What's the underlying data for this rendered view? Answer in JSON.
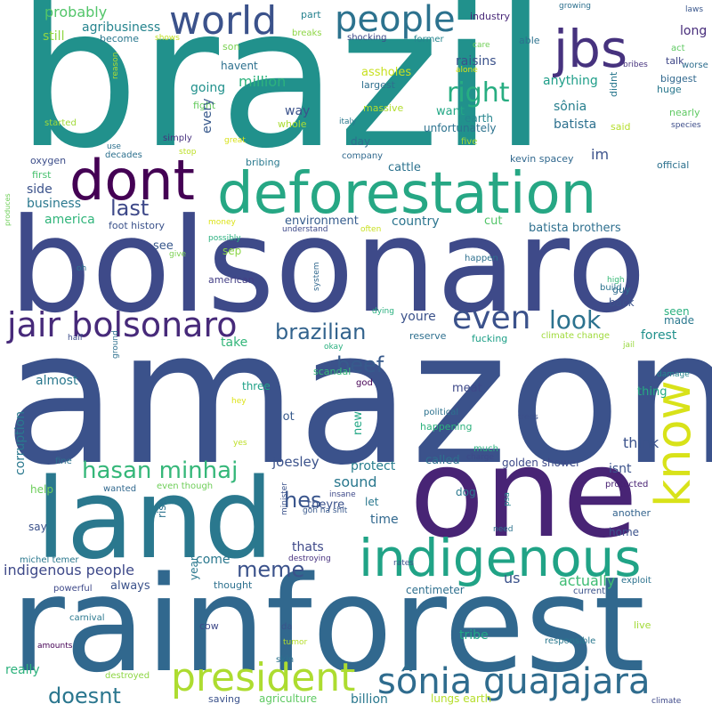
{
  "words": [
    {
      "text": "brazil",
      "color": "#21918c"
    },
    {
      "text": "amazon",
      "color": "#3b528b"
    },
    {
      "text": "bolsonaro",
      "color": "#3e4a89"
    },
    {
      "text": "rainforest",
      "color": "#31688e"
    },
    {
      "text": "one",
      "color": "#482475"
    },
    {
      "text": "land",
      "color": "#2a788e"
    },
    {
      "text": "deforestation",
      "color": "#26a784"
    },
    {
      "text": "indigenous",
      "color": "#20a386"
    },
    {
      "text": "dont",
      "color": "#440154"
    },
    {
      "text": "world",
      "color": "#3b528b"
    },
    {
      "text": "people",
      "color": "#2c728e"
    },
    {
      "text": "jbs",
      "color": "#46327e"
    },
    {
      "text": "president",
      "color": "#addc30"
    },
    {
      "text": "sônia guajajara",
      "color": "#2f6c8e"
    },
    {
      "text": "know",
      "color": "#d8e219"
    },
    {
      "text": "jair bolsonaro",
      "color": "#472a7a"
    },
    {
      "text": "even",
      "color": "#3b528b"
    },
    {
      "text": "right",
      "color": "#27ad81"
    },
    {
      "text": "look",
      "color": "#2c728e"
    },
    {
      "text": "hasan minhaj",
      "color": "#35b779"
    },
    {
      "text": "brazilian",
      "color": "#33638d"
    },
    {
      "text": "beef",
      "color": "#375a8c"
    },
    {
      "text": "doesnt",
      "color": "#2a768e"
    },
    {
      "text": "meme",
      "color": "#3b528b"
    },
    {
      "text": "last",
      "color": "#3e4989"
    },
    {
      "text": "hes",
      "color": "#39558c"
    },
    {
      "text": "probably",
      "color": "#52c569"
    },
    {
      "text": "agribusiness",
      "color": "#25848e"
    },
    {
      "text": "still",
      "color": "#90d743"
    },
    {
      "text": "become",
      "color": "#2a788e"
    },
    {
      "text": "shows",
      "color": "#c2df23"
    },
    {
      "text": "part",
      "color": "#26828e"
    },
    {
      "text": "breaks",
      "color": "#8ed645"
    },
    {
      "text": "son",
      "color": "#7ad151"
    },
    {
      "text": "havent",
      "color": "#2d708e"
    },
    {
      "text": "million",
      "color": "#2db27d"
    },
    {
      "text": "industry",
      "color": "#482878"
    },
    {
      "text": "shocking",
      "color": "#3e4989"
    },
    {
      "text": "former",
      "color": "#25858e"
    },
    {
      "text": "care",
      "color": "#70cf57"
    },
    {
      "text": "able",
      "color": "#2c728e"
    },
    {
      "text": "alone",
      "color": "#dde318"
    },
    {
      "text": "raisins",
      "color": "#3b528b"
    },
    {
      "text": "assholes",
      "color": "#c8e020"
    },
    {
      "text": "largest",
      "color": "#2e6f8e"
    },
    {
      "text": "anything",
      "color": "#1f9e89"
    },
    {
      "text": "didnt",
      "color": "#2a788e"
    },
    {
      "text": "growing",
      "color": "#2d708e"
    },
    {
      "text": "laws",
      "color": "#39568c"
    },
    {
      "text": "long",
      "color": "#472d7b"
    },
    {
      "text": "act",
      "color": "#5ec962"
    },
    {
      "text": "worse",
      "color": "#2e6e8e"
    },
    {
      "text": "bribes",
      "color": "#46327e"
    },
    {
      "text": "talk",
      "color": "#3f4788"
    },
    {
      "text": "biggest",
      "color": "#31688e"
    },
    {
      "text": "huge",
      "color": "#2a788e"
    },
    {
      "text": "nearly",
      "color": "#5ec962"
    },
    {
      "text": "species",
      "color": "#3d4d8a"
    },
    {
      "text": "going",
      "color": "#21918c"
    },
    {
      "text": "massive",
      "color": "#b2dd2d"
    },
    {
      "text": "whole",
      "color": "#aadc32"
    },
    {
      "text": "way",
      "color": "#3b528b"
    },
    {
      "text": "want",
      "color": "#22a785"
    },
    {
      "text": "earth",
      "color": "#25858e"
    },
    {
      "text": "unfortunately",
      "color": "#2c728e"
    },
    {
      "text": "sônia",
      "color": "#277f8e"
    },
    {
      "text": "batista",
      "color": "#2d708e"
    },
    {
      "text": "said",
      "color": "#b5de2b"
    },
    {
      "text": "reason",
      "color": "#addc30"
    },
    {
      "text": "fight",
      "color": "#65cb5e"
    },
    {
      "text": "great",
      "color": "#d8e219"
    },
    {
      "text": "italy",
      "color": "#2a788e"
    },
    {
      "text": "five",
      "color": "#a2da37"
    },
    {
      "text": "started",
      "color": "#a0da39"
    },
    {
      "text": "use",
      "color": "#2d708e"
    },
    {
      "text": "decades",
      "color": "#2d708e"
    },
    {
      "text": "simply",
      "color": "#46307e"
    },
    {
      "text": "stop",
      "color": "#bddf26"
    },
    {
      "text": "every",
      "color": "#38598c"
    },
    {
      "text": "day",
      "color": "#2e6e8e"
    },
    {
      "text": "company",
      "color": "#30698e"
    },
    {
      "text": "im",
      "color": "#3b528b"
    },
    {
      "text": "kevin spacey",
      "color": "#31688e"
    },
    {
      "text": "official",
      "color": "#2c718e"
    },
    {
      "text": "oxygen",
      "color": "#3d4e8a"
    },
    {
      "text": "bribing",
      "color": "#29798e"
    },
    {
      "text": "cattle",
      "color": "#2c728e"
    },
    {
      "text": "first",
      "color": "#48c16e"
    },
    {
      "text": "side",
      "color": "#3b528b"
    },
    {
      "text": "business",
      "color": "#2a788e"
    },
    {
      "text": "america",
      "color": "#31b57b"
    },
    {
      "text": "environment",
      "color": "#365c8d"
    },
    {
      "text": "country",
      "color": "#2b748e"
    },
    {
      "text": "cut",
      "color": "#52c569"
    },
    {
      "text": "batista brothers",
      "color": "#2e6f8e"
    },
    {
      "text": "foot history",
      "color": "#3b528b"
    },
    {
      "text": "money",
      "color": "#dde318"
    },
    {
      "text": "understand",
      "color": "#3e4989"
    },
    {
      "text": "often",
      "color": "#c8e020"
    },
    {
      "text": "possibly",
      "color": "#2ab07f"
    },
    {
      "text": "produces",
      "color": "#6ece58"
    },
    {
      "text": "give",
      "color": "#7ad151"
    },
    {
      "text": "sep",
      "color": "#8bd646"
    },
    {
      "text": "see",
      "color": "#38588c"
    },
    {
      "text": "happen",
      "color": "#2d708e"
    },
    {
      "text": "guy",
      "color": "#2f6b8e"
    },
    {
      "text": "oh",
      "color": "#2c728e"
    },
    {
      "text": "american",
      "color": "#433e85"
    },
    {
      "text": "system",
      "color": "#31688e"
    },
    {
      "text": "high",
      "color": "#38b977"
    },
    {
      "text": "build",
      "color": "#2c728e"
    },
    {
      "text": "back",
      "color": "#3b528b"
    },
    {
      "text": "seen",
      "color": "#2ab07f"
    },
    {
      "text": "made",
      "color": "#2a788e"
    },
    {
      "text": "forest",
      "color": "#21918c"
    },
    {
      "text": "youre",
      "color": "#3b528b"
    },
    {
      "text": "take",
      "color": "#33b67a"
    },
    {
      "text": "dying",
      "color": "#2ab07f"
    },
    {
      "text": "reserve",
      "color": "#2e6f8e"
    },
    {
      "text": "fucking",
      "color": "#1fa088"
    },
    {
      "text": "climate change",
      "color": "#9fda3a"
    },
    {
      "text": "half",
      "color": "#3d4d8a"
    },
    {
      "text": "okay",
      "color": "#2ab07f"
    },
    {
      "text": "jail",
      "color": "#98d83e"
    },
    {
      "text": "ground",
      "color": "#2d708e"
    },
    {
      "text": "scandal",
      "color": "#37b878"
    },
    {
      "text": "almost",
      "color": "#2a788e"
    },
    {
      "text": "meat",
      "color": "#3e4989"
    },
    {
      "text": "damage",
      "color": "#25858e"
    },
    {
      "text": "three",
      "color": "#1fa187"
    },
    {
      "text": "thing",
      "color": "#25ac82"
    },
    {
      "text": "god",
      "color": "#440154"
    },
    {
      "text": "hey",
      "color": "#dde318"
    },
    {
      "text": "lot",
      "color": "#375a8c"
    },
    {
      "text": "political",
      "color": "#2c728e"
    },
    {
      "text": "trees",
      "color": "#3c4f8a"
    },
    {
      "text": "happening",
      "color": "#2db27d"
    },
    {
      "text": "new",
      "color": "#22a785"
    },
    {
      "text": "yes",
      "color": "#bddf26"
    },
    {
      "text": "think",
      "color": "#3b528b"
    },
    {
      "text": "much",
      "color": "#2ab07f"
    },
    {
      "text": "charge",
      "color": "#3e4989"
    },
    {
      "text": "fine",
      "color": "#2c728e"
    },
    {
      "text": "joesley",
      "color": "#3b528b"
    },
    {
      "text": "protect",
      "color": "#277e8e"
    },
    {
      "text": "called",
      "color": "#2d708e"
    },
    {
      "text": "isnt",
      "color": "#3b528b"
    },
    {
      "text": "corruption",
      "color": "#2a788e"
    },
    {
      "text": "golden shower",
      "color": "#3e4a89"
    },
    {
      "text": "wanted",
      "color": "#31688e"
    },
    {
      "text": "even though",
      "color": "#6ece58"
    },
    {
      "text": "protected",
      "color": "#482173"
    },
    {
      "text": "help",
      "color": "#6ccd5a"
    },
    {
      "text": "rise",
      "color": "#2c728e"
    },
    {
      "text": "sound",
      "color": "#2a788e"
    },
    {
      "text": "insane",
      "color": "#3e4989"
    },
    {
      "text": "theyre",
      "color": "#3b528b"
    },
    {
      "text": "dog",
      "color": "#2a788e"
    },
    {
      "text": "gon na shit",
      "color": "#38588c"
    },
    {
      "text": "psa",
      "color": "#25858e"
    },
    {
      "text": "another",
      "color": "#33638d"
    },
    {
      "text": "minister",
      "color": "#3b528b"
    },
    {
      "text": "say",
      "color": "#3b528b"
    },
    {
      "text": "let",
      "color": "#2a788e"
    },
    {
      "text": "time",
      "color": "#31688e"
    },
    {
      "text": "need",
      "color": "#2c728e"
    },
    {
      "text": "home",
      "color": "#3b528b"
    },
    {
      "text": "thats",
      "color": "#3e4989"
    },
    {
      "text": "michel temer",
      "color": "#2a788e"
    },
    {
      "text": "indigenous people",
      "color": "#3e4989"
    },
    {
      "text": "come",
      "color": "#2a788e"
    },
    {
      "text": "rates",
      "color": "#3b528b"
    },
    {
      "text": "destroying",
      "color": "#46307e"
    },
    {
      "text": "us",
      "color": "#3b528b"
    },
    {
      "text": "actually",
      "color": "#3ebc74"
    },
    {
      "text": "always",
      "color": "#3b528b"
    },
    {
      "text": "year",
      "color": "#2a788e"
    },
    {
      "text": "thought",
      "color": "#2d708e"
    },
    {
      "text": "powerful",
      "color": "#3e4989"
    },
    {
      "text": "centimeter",
      "color": "#2e6f8e"
    },
    {
      "text": "exploit",
      "color": "#2c728e"
    },
    {
      "text": "current",
      "color": "#3b528b"
    },
    {
      "text": "carnival",
      "color": "#2a788e"
    },
    {
      "text": "cow",
      "color": "#3e4989"
    },
    {
      "text": "da",
      "color": "#3b528b"
    },
    {
      "text": "tribe",
      "color": "#22a785"
    },
    {
      "text": "live",
      "color": "#a2da37"
    },
    {
      "text": "amounts",
      "color": "#440154"
    },
    {
      "text": "tumor",
      "color": "#b5de2b"
    },
    {
      "text": "responsible",
      "color": "#2a788e"
    },
    {
      "text": "really",
      "color": "#2db27d"
    },
    {
      "text": "skin",
      "color": "#2c728e"
    },
    {
      "text": "destroyed",
      "color": "#8ed645"
    },
    {
      "text": "saving",
      "color": "#3b528b"
    },
    {
      "text": "agriculture",
      "color": "#5ec962"
    },
    {
      "text": "billion",
      "color": "#2a788e"
    },
    {
      "text": "lungs earth",
      "color": "#b5de2b"
    },
    {
      "text": "climate",
      "color": "#3e4989"
    }
  ]
}
